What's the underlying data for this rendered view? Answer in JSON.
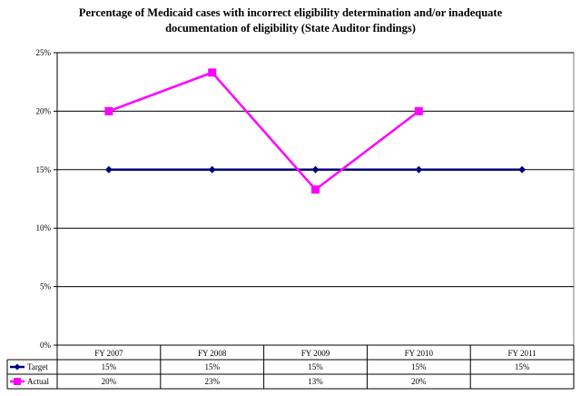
{
  "chart_data": {
    "type": "line",
    "title_lines": [
      "Percentage of Medicaid cases with incorrect eligibility determination and/or inadequate",
      "documentation of eligibility (State Auditor findings)"
    ],
    "categories": [
      "FY 2007",
      "FY 2008",
      "FY 2009",
      "FY 2010",
      "FY 2011"
    ],
    "ylim": [
      0,
      25
    ],
    "yticks": [
      0,
      5,
      10,
      15,
      20,
      25
    ],
    "ytick_labels": [
      "0%",
      "5%",
      "10%",
      "15%",
      "20%",
      "25%"
    ],
    "grid": true,
    "legend_placement": "data-table-rows",
    "series": [
      {
        "name": "Target",
        "values": [
          15,
          15,
          15,
          15,
          15
        ],
        "labels": [
          "15%",
          "15%",
          "15%",
          "15%",
          "15%"
        ],
        "color": "#00007F",
        "marker": "diamond"
      },
      {
        "name": "Actual",
        "values": [
          20,
          23.3,
          13.3,
          20,
          null
        ],
        "labels": [
          "20%",
          "23%",
          "13%",
          "20%",
          ""
        ],
        "color": "#FF00FF",
        "marker": "square"
      }
    ]
  }
}
